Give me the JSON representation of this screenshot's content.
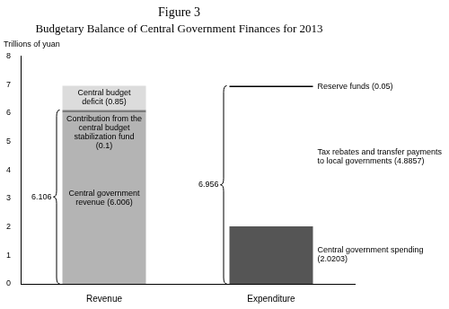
{
  "chart_data": {
    "type": "bar",
    "title": "Figure 3",
    "subtitle": "Budgetary Balance of Central Government Finances for 2013",
    "y_label": "Trillions of yuan",
    "categories": [
      "Revenue",
      "Expenditure"
    ],
    "series": [
      {
        "name": "Central government revenue",
        "color": "#b4b4b4",
        "values": [
          6.006,
          null
        ],
        "value_labels": [
          "Central government revenue (6.006)",
          null
        ]
      },
      {
        "name": "Contribution from the central budget stabilization fund",
        "color": "#7a7a7a",
        "values": [
          0.1,
          null
        ],
        "value_labels": [
          "Contribution from the central budget stabilization fund (0.1)",
          null
        ]
      },
      {
        "name": "Central budget deficit",
        "color": "#dcdcdc",
        "values": [
          0.85,
          null
        ],
        "value_labels": [
          "Central budget deficit (0.85)",
          null
        ]
      },
      {
        "name": "Central government spending",
        "color": "#555555",
        "values": [
          null,
          2.0203
        ],
        "value_labels": [
          null,
          "Central government spending (2.0203)"
        ]
      },
      {
        "name": "Tax rebates and transfer payments to local governments",
        "color": "#ffffff",
        "values": [
          null,
          4.8857
        ],
        "value_labels": [
          null,
          "Tax rebates and transfer payments to local governments (4.8857)"
        ]
      },
      {
        "name": "Reserve funds",
        "color": "#000000",
        "values": [
          null,
          0.05
        ],
        "value_labels": [
          null,
          "Reserve funds (0.05)"
        ]
      }
    ],
    "stacked": true,
    "data_labels": true,
    "ylim": [
      0,
      8
    ],
    "yticks": [
      0,
      1,
      2,
      3,
      4,
      5,
      6,
      7,
      8
    ],
    "grid": false,
    "brackets": [
      {
        "category": "Revenue",
        "from": 0,
        "to": 6.106
      },
      {
        "category": "Expenditure",
        "from": 0,
        "to": 6.956
      }
    ]
  }
}
